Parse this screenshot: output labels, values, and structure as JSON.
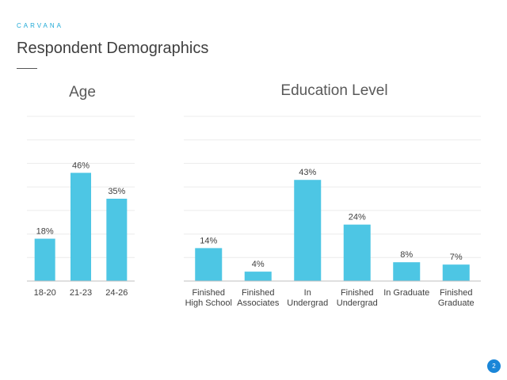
{
  "header": {
    "brand": "CARVANA",
    "title": "Respondent Demographics"
  },
  "colors": {
    "bar": "#4dc6e4",
    "brand": "#1fa9d6",
    "badge": "#1a86d8"
  },
  "page_number": "2",
  "chart_data": [
    {
      "id": "age",
      "type": "bar",
      "title": "Age",
      "categories": [
        "18-20",
        "21-23",
        "24-26"
      ],
      "values": [
        18,
        46,
        35
      ],
      "data_labels": [
        "18%",
        "46%",
        "35%"
      ],
      "ylim": [
        0,
        70
      ],
      "grid": true
    },
    {
      "id": "education",
      "type": "bar",
      "title": "Education Level",
      "categories": [
        [
          "Finished",
          "High School"
        ],
        [
          "Finished",
          "Associates"
        ],
        [
          "In",
          "Undergrad"
        ],
        [
          "Finished",
          "Undergrad"
        ],
        [
          "In Graduate"
        ],
        [
          "Finished",
          "Graduate"
        ]
      ],
      "values": [
        14,
        4,
        43,
        24,
        8,
        7
      ],
      "data_labels": [
        "14%",
        "4%",
        "43%",
        "24%",
        "8%",
        "7%"
      ],
      "ylim": [
        0,
        70
      ],
      "grid": true
    }
  ]
}
